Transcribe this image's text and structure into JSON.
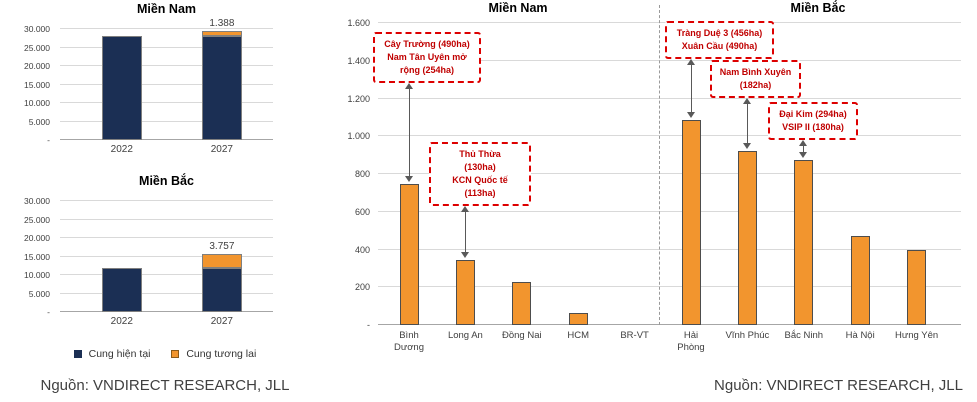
{
  "colors": {
    "navy": "#1b2f54",
    "orange": "#f2952e",
    "gridline": "#d9d9d9",
    "axis_text": "#404040",
    "annotation_border": "#dd0000",
    "annotation_text": "#c00000",
    "arrow": "#595959"
  },
  "legend": {
    "items": [
      {
        "label": "Cung hiện tại",
        "color": "#1b2f54"
      },
      {
        "label": "Cung tương lai",
        "color": "#f2952e"
      }
    ]
  },
  "source_left": "Nguồn: VNDIRECT RESEARCH, JLL",
  "source_right": "Nguồn: VNDIRECT RESEARCH, JLL",
  "chart_data": [
    {
      "id": "supply-mien-nam",
      "type": "bar",
      "stacked": true,
      "title": "Miền Nam",
      "categories": [
        "2022",
        "2027"
      ],
      "series": [
        {
          "name": "Cung hiện tại",
          "color": "#1b2f54",
          "values": [
            28000,
            28000
          ]
        },
        {
          "name": "Cung tương lai",
          "color": "#f2952e",
          "values": [
            0,
            1388
          ]
        }
      ],
      "data_labels": [
        {
          "category_index": 1,
          "text": "1.388"
        }
      ],
      "ylim": [
        0,
        30000
      ],
      "grid": true,
      "legend_position": "bottom",
      "yticks": [
        {
          "value": 30000,
          "label": "30.000"
        },
        {
          "value": 25000,
          "label": "25.000"
        },
        {
          "value": 20000,
          "label": "20.000"
        },
        {
          "value": 15000,
          "label": "15.000"
        },
        {
          "value": 10000,
          "label": "10.000"
        },
        {
          "value": 5000,
          "label": "5.000"
        },
        {
          "value": 0,
          "label": "-"
        }
      ]
    },
    {
      "id": "supply-mien-bac",
      "type": "bar",
      "stacked": true,
      "title": "Miền Bắc",
      "categories": [
        "2022",
        "2027"
      ],
      "series": [
        {
          "name": "Cung hiện tại",
          "color": "#1b2f54",
          "values": [
            12000,
            12000
          ]
        },
        {
          "name": "Cung tương lai",
          "color": "#f2952e",
          "values": [
            0,
            3757
          ]
        }
      ],
      "data_labels": [
        {
          "category_index": 1,
          "text": "3.757"
        }
      ],
      "ylim": [
        0,
        30000
      ],
      "grid": true,
      "legend_position": "bottom",
      "yticks": [
        {
          "value": 30000,
          "label": "30.000"
        },
        {
          "value": 25000,
          "label": "25.000"
        },
        {
          "value": 20000,
          "label": "20.000"
        },
        {
          "value": 15000,
          "label": "15.000"
        },
        {
          "value": 10000,
          "label": "10.000"
        },
        {
          "value": 5000,
          "label": "5.000"
        },
        {
          "value": 0,
          "label": "-"
        }
      ]
    },
    {
      "id": "supply-by-province",
      "type": "bar",
      "section_titles": [
        "Miền Nam",
        "Miền Bắc"
      ],
      "divider_after_index": 4,
      "categories": [
        "Bình Dương",
        "Long An",
        "Đồng Nai",
        "HCM",
        "BR-VT",
        "Hải Phòng",
        "Vĩnh Phúc",
        "Bắc Ninh",
        "Hà Nội",
        "Hưng Yên"
      ],
      "values": [
        745,
        345,
        230,
        65,
        0,
        1085,
        920,
        875,
        470,
        400
      ],
      "bar_color": "#f2952e",
      "ylim": [
        0,
        1600
      ],
      "grid": true,
      "yticks": [
        {
          "value": 1600,
          "label": "1.600"
        },
        {
          "value": 1400,
          "label": "1.400"
        },
        {
          "value": 1200,
          "label": "1.200"
        },
        {
          "value": 1000,
          "label": "1.000"
        },
        {
          "value": 800,
          "label": "800"
        },
        {
          "value": 600,
          "label": "600"
        },
        {
          "value": 400,
          "label": "400"
        },
        {
          "value": 200,
          "label": "200"
        },
        {
          "value": 0,
          "label": "-"
        }
      ],
      "annotations": [
        {
          "lines": [
            "Cây Trường (490ha)",
            "Nam Tân Uyên mở",
            "rộng (254ha)"
          ],
          "target": "Bình Dương"
        },
        {
          "lines": [
            "Thủ Thừa",
            "(130ha)",
            "KCN Quốc tế",
            "(113ha)"
          ],
          "target": "Long An"
        },
        {
          "lines": [
            "Tràng Duệ 3 (456ha)",
            "Xuân Cầu (490ha)"
          ],
          "target": "Hải Phòng"
        },
        {
          "lines": [
            "Nam Bình Xuyên",
            "(182ha)"
          ],
          "target": "Vĩnh Phúc"
        },
        {
          "lines": [
            "Đại Kim (294ha)",
            "VSIP II (180ha)"
          ],
          "target": "Bắc Ninh"
        }
      ]
    }
  ]
}
